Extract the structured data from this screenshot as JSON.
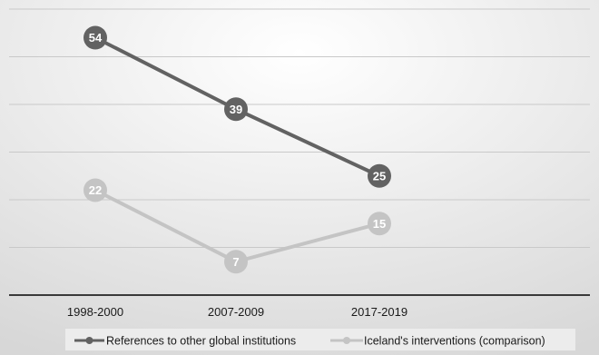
{
  "chart_data": {
    "type": "line",
    "categories": [
      "1998-2000",
      "2007-2009",
      "2017-2019"
    ],
    "series": [
      {
        "name": "References to other global institutions",
        "values": [
          54,
          39,
          25
        ],
        "labels": [
          "54",
          "39",
          "25"
        ],
        "color": "#626262"
      },
      {
        "name": "Iceland's interventions (comparison)",
        "values": [
          22,
          7,
          15
        ],
        "labels": [
          "22",
          "7",
          "15"
        ],
        "color": "#c4c4c4"
      }
    ],
    "ylim": [
      0,
      60
    ],
    "grid": true,
    "legend": "bottom",
    "colors": {
      "background_center": "#ffffff",
      "background_edge": "#d7d7d7",
      "gridline": "#c9c9c9",
      "axis": "#3a3a3a",
      "text": "#1a1a1a"
    }
  }
}
